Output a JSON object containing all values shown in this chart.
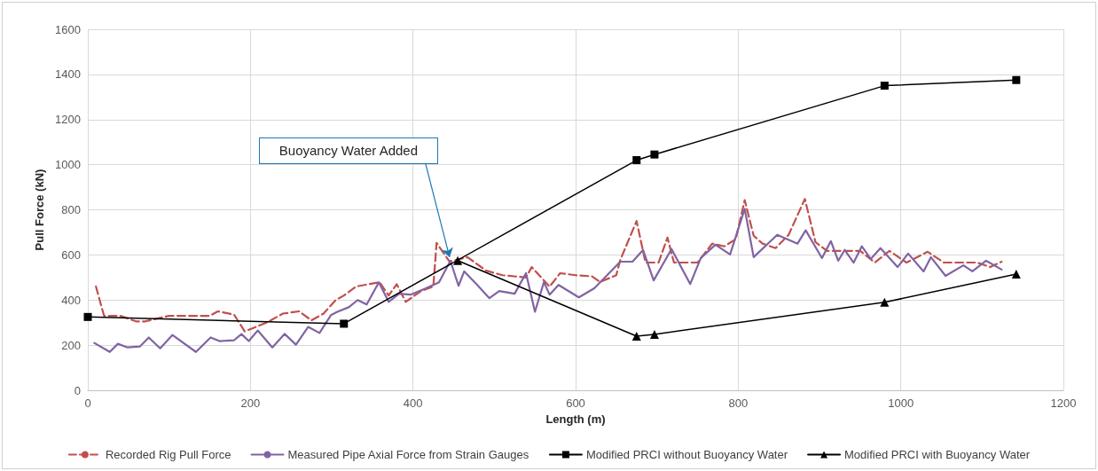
{
  "chart_data": {
    "type": "line",
    "xlabel": "Length (m)",
    "ylabel": "Pull Force (kN)",
    "xlim": [
      0,
      1200
    ],
    "xticks": [
      0,
      200,
      400,
      600,
      800,
      1000,
      1200
    ],
    "ylim": [
      0,
      1600
    ],
    "yticks": [
      0,
      200,
      400,
      600,
      800,
      1000,
      1200,
      1400,
      1600
    ],
    "grid": true,
    "legend": "bottom",
    "annotations": [
      {
        "text": "Buoyancy Water Added",
        "x": 445,
        "y": 590
      }
    ],
    "series": [
      {
        "name": "Recorded Rig Pull Force",
        "color": "#c0504d",
        "line_style": "dashed",
        "marker": "none",
        "x": [
          10,
          20,
          40,
          60,
          70,
          100,
          150,
          160,
          180,
          193,
          220,
          240,
          260,
          275,
          290,
          305,
          315,
          330,
          359,
          370,
          380,
          391,
          410,
          425,
          429,
          445,
          467,
          490,
          510,
          539,
          546,
          568,
          581,
          600,
          620,
          630,
          650,
          655,
          675,
          686,
          702,
          713,
          721,
          750,
          768,
          783,
          797,
          808,
          819,
          830,
          846,
          862,
          882,
          895,
          909,
          950,
          968,
          986,
          1007,
          1033,
          1053,
          1094,
          1110,
          1124
        ],
        "values": [
          460,
          330,
          330,
          305,
          305,
          330,
          330,
          350,
          335,
          261,
          300,
          340,
          350,
          310,
          340,
          400,
          420,
          460,
          479,
          420,
          470,
          392,
          440,
          460,
          653,
          570,
          590,
          530,
          510,
          500,
          546,
          459,
          519,
          510,
          505,
          480,
          510,
          578,
          750,
          566,
          566,
          677,
          566,
          566,
          650,
          638,
          670,
          843,
          685,
          650,
          630,
          689,
          848,
          657,
          618,
          618,
          566,
          618,
          566,
          614,
          566,
          566,
          546,
          570
        ]
      },
      {
        "name": "Measured Pipe Axial Force from Strain Gauges",
        "color": "#8064a2",
        "line_style": "solid",
        "marker": "none",
        "x": [
          8,
          27,
          37,
          49,
          64,
          75,
          89,
          104,
          133,
          151,
          162,
          180,
          189,
          198,
          209,
          227,
          242,
          256,
          271,
          285,
          299,
          307,
          321,
          332,
          343,
          358,
          370,
          383,
          397,
          416,
          432,
          446,
          456,
          463,
          478,
          494,
          506,
          525,
          539,
          550,
          561,
          568,
          579,
          604,
          623,
          655,
          670,
          683,
          696,
          718,
          741,
          754,
          772,
          790,
          808,
          819,
          848,
          873,
          883,
          903,
          914,
          923,
          931,
          942,
          952,
          963,
          975,
          996,
          1009,
          1028,
          1037,
          1055,
          1077,
          1088,
          1105,
          1124
        ],
        "values": [
          210,
          170,
          206,
          190,
          194,
          234,
          186,
          245,
          170,
          234,
          218,
          222,
          249,
          218,
          265,
          190,
          250,
          202,
          281,
          254,
          333,
          348,
          368,
          400,
          380,
          479,
          392,
          428,
          424,
          452,
          479,
          574,
          463,
          527,
          471,
          408,
          440,
          428,
          519,
          348,
          479,
          424,
          467,
          412,
          452,
          570,
          570,
          622,
          487,
          626,
          471,
          586,
          645,
          602,
          804,
          590,
          689,
          650,
          709,
          586,
          661,
          574,
          622,
          566,
          638,
          582,
          630,
          546,
          606,
          527,
          590,
          507,
          554,
          527,
          574,
          535
        ]
      },
      {
        "name": "Modified PRCI without Buoyancy Water",
        "color": "#000000",
        "line_style": "solid",
        "marker": "square",
        "x": [
          0,
          315,
          675,
          697,
          980,
          1142
        ],
        "values": [
          325,
          295,
          1020,
          1045,
          1350,
          1375
        ]
      },
      {
        "name": "Modified PRCI with Buoyancy Water",
        "color": "#000000",
        "line_style": "solid",
        "marker": "triangle",
        "x": [
          455,
          675,
          697,
          980,
          1142
        ],
        "values": [
          575,
          240,
          248,
          390,
          515
        ]
      }
    ]
  }
}
